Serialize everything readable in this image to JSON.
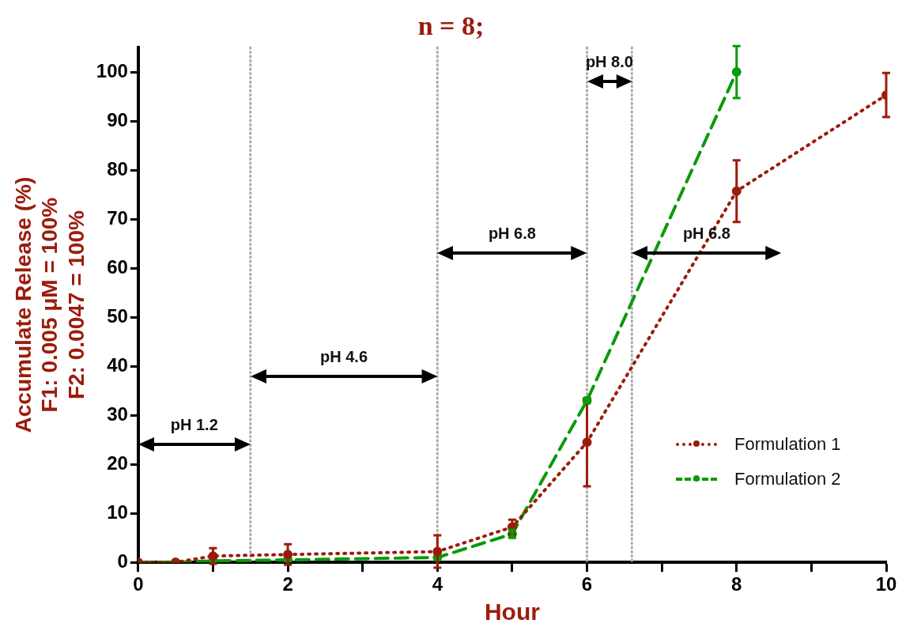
{
  "chart_data": {
    "type": "line",
    "title": "n = 8;",
    "xlabel": "Hour",
    "ylabel": "Accumulate Release (%)\nF1: 0.005 μM = 100%\nF2: 0.0047 = 100%",
    "xlim": [
      0,
      10
    ],
    "xticks": [
      0,
      {
        "value": 1,
        "label": null
      },
      2,
      {
        "value": 3,
        "label": null
      },
      4,
      {
        "value": 5,
        "label": null
      },
      6,
      {
        "value": 7,
        "label": null
      },
      8,
      {
        "value": 9,
        "label": null
      },
      10
    ],
    "ylim": [
      0,
      105
    ],
    "yticks": [
      0,
      10,
      20,
      30,
      40,
      50,
      60,
      70,
      80,
      90,
      100
    ],
    "grid": false,
    "legend": "bottom right",
    "marker": "circle",
    "series": [
      {
        "name": "Formulation 1",
        "color": "#9b1c0c",
        "line_style": "dotted",
        "x": [
          0,
          0.5,
          1,
          2,
          4,
          5,
          6,
          8,
          10
        ],
        "values": [
          0,
          0,
          1.3,
          1.6,
          2.2,
          7.2,
          24.5,
          75.7,
          95.3
        ],
        "errors": [
          null,
          null,
          1.6,
          2.1,
          3.3,
          1.5,
          9,
          6.3,
          4.5
        ]
      },
      {
        "name": "Formulation 2",
        "color": "#0a9a0a",
        "line_style": "dashed",
        "x": [
          0,
          0.5,
          1,
          2,
          4,
          5,
          6,
          8
        ],
        "values": [
          0,
          0,
          0.3,
          0.5,
          1,
          5.8,
          33,
          100
        ],
        "errors": [
          null,
          null,
          null,
          null,
          null,
          0.8,
          0.5,
          5.3
        ]
      }
    ],
    "ref_lines": [
      {
        "axis": "x",
        "value": 1.5,
        "color": "#aaaaaa",
        "line_style": "dotted"
      },
      {
        "axis": "x",
        "value": 4,
        "color": "#aaaaaa",
        "line_style": "dotted"
      },
      {
        "axis": "x",
        "value": 6,
        "color": "#aaaaaa",
        "line_style": "dotted"
      },
      {
        "axis": "x",
        "value": 6.6,
        "color": "#aaaaaa",
        "line_style": "dotted"
      }
    ],
    "annotations": [
      "pH 1.2",
      "pH 4.6",
      "pH 6.8",
      "pH 8.0",
      "pH 6.8"
    ]
  }
}
